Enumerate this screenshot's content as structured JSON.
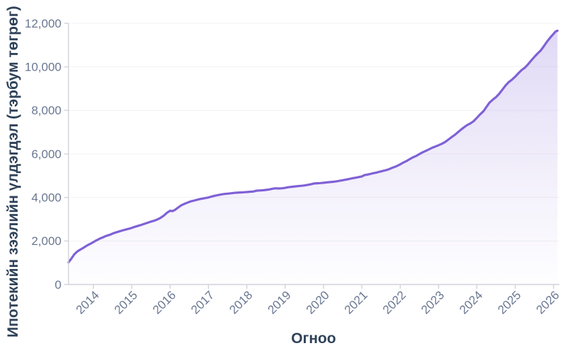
{
  "chart_data": {
    "type": "area",
    "title": "",
    "xlabel": "Огноо",
    "ylabel": "Ипотекийн зээлийн үлдэгдэл (тэрбум төгрөг)",
    "x_tick_labels": [
      "2014",
      "2015",
      "2016",
      "2017",
      "2018",
      "2019",
      "2020",
      "2021",
      "2022",
      "2023",
      "2024",
      "2025",
      "2026"
    ],
    "x_tick_values": [
      2014,
      2015,
      2016,
      2017,
      2018,
      2019,
      2020,
      2021,
      2022,
      2023,
      2024,
      2025,
      2026
    ],
    "y_tick_values": [
      0,
      2000,
      4000,
      6000,
      8000,
      10000,
      12000
    ],
    "y_tick_labels": [
      "0",
      "2,000",
      "4,000",
      "6,000",
      "8,000",
      "10,000",
      "12,000"
    ],
    "xlim": [
      2013.35,
      2026.15
    ],
    "ylim": [
      0,
      12000
    ],
    "grid": true,
    "legend": false,
    "line_color": "#7f61d6",
    "fill_color": "#7f61d6",
    "grid_color": "#f3f2f7",
    "axis_color": "#d2d2dc",
    "tick_label_color": "#6a7791",
    "axis_title_color": "#2f4259",
    "points": [
      [
        2013.35,
        1020
      ],
      [
        2013.42,
        1180
      ],
      [
        2013.5,
        1380
      ],
      [
        2013.58,
        1520
      ],
      [
        2013.67,
        1620
      ],
      [
        2013.75,
        1700
      ],
      [
        2013.83,
        1790
      ],
      [
        2013.92,
        1870
      ],
      [
        2014.0,
        1950
      ],
      [
        2014.08,
        2030
      ],
      [
        2014.17,
        2110
      ],
      [
        2014.25,
        2170
      ],
      [
        2014.33,
        2230
      ],
      [
        2014.42,
        2280
      ],
      [
        2014.5,
        2340
      ],
      [
        2014.58,
        2390
      ],
      [
        2014.67,
        2440
      ],
      [
        2014.75,
        2480
      ],
      [
        2014.83,
        2520
      ],
      [
        2014.92,
        2560
      ],
      [
        2015.0,
        2600
      ],
      [
        2015.08,
        2650
      ],
      [
        2015.17,
        2700
      ],
      [
        2015.25,
        2740
      ],
      [
        2015.33,
        2790
      ],
      [
        2015.42,
        2840
      ],
      [
        2015.5,
        2890
      ],
      [
        2015.58,
        2930
      ],
      [
        2015.67,
        2990
      ],
      [
        2015.75,
        3060
      ],
      [
        2015.83,
        3160
      ],
      [
        2015.92,
        3300
      ],
      [
        2016.0,
        3390
      ],
      [
        2016.06,
        3370
      ],
      [
        2016.13,
        3430
      ],
      [
        2016.21,
        3540
      ],
      [
        2016.29,
        3640
      ],
      [
        2016.38,
        3710
      ],
      [
        2016.46,
        3770
      ],
      [
        2016.54,
        3820
      ],
      [
        2016.63,
        3860
      ],
      [
        2016.71,
        3900
      ],
      [
        2016.79,
        3930
      ],
      [
        2016.88,
        3960
      ],
      [
        2017.0,
        4000
      ],
      [
        2017.08,
        4040
      ],
      [
        2017.17,
        4080
      ],
      [
        2017.25,
        4110
      ],
      [
        2017.33,
        4140
      ],
      [
        2017.42,
        4160
      ],
      [
        2017.5,
        4175
      ],
      [
        2017.58,
        4190
      ],
      [
        2017.67,
        4210
      ],
      [
        2017.75,
        4220
      ],
      [
        2017.83,
        4230
      ],
      [
        2017.92,
        4240
      ],
      [
        2018.0,
        4250
      ],
      [
        2018.08,
        4260
      ],
      [
        2018.17,
        4270
      ],
      [
        2018.25,
        4310
      ],
      [
        2018.33,
        4320
      ],
      [
        2018.42,
        4330
      ],
      [
        2018.5,
        4345
      ],
      [
        2018.58,
        4365
      ],
      [
        2018.67,
        4400
      ],
      [
        2018.75,
        4420
      ],
      [
        2018.83,
        4410
      ],
      [
        2018.92,
        4420
      ],
      [
        2019.0,
        4440
      ],
      [
        2019.08,
        4470
      ],
      [
        2019.17,
        4490
      ],
      [
        2019.25,
        4505
      ],
      [
        2019.33,
        4520
      ],
      [
        2019.42,
        4535
      ],
      [
        2019.5,
        4550
      ],
      [
        2019.58,
        4575
      ],
      [
        2019.67,
        4605
      ],
      [
        2019.75,
        4640
      ],
      [
        2019.83,
        4650
      ],
      [
        2019.92,
        4660
      ],
      [
        2020.0,
        4675
      ],
      [
        2020.08,
        4690
      ],
      [
        2020.17,
        4705
      ],
      [
        2020.25,
        4720
      ],
      [
        2020.33,
        4740
      ],
      [
        2020.42,
        4765
      ],
      [
        2020.5,
        4790
      ],
      [
        2020.58,
        4820
      ],
      [
        2020.67,
        4850
      ],
      [
        2020.75,
        4880
      ],
      [
        2020.83,
        4905
      ],
      [
        2020.92,
        4935
      ],
      [
        2021.0,
        4965
      ],
      [
        2021.06,
        5020
      ],
      [
        2021.13,
        5045
      ],
      [
        2021.21,
        5075
      ],
      [
        2021.29,
        5110
      ],
      [
        2021.38,
        5145
      ],
      [
        2021.46,
        5180
      ],
      [
        2021.54,
        5215
      ],
      [
        2021.63,
        5255
      ],
      [
        2021.71,
        5300
      ],
      [
        2021.79,
        5360
      ],
      [
        2021.88,
        5420
      ],
      [
        2022.0,
        5520
      ],
      [
        2022.08,
        5600
      ],
      [
        2022.17,
        5680
      ],
      [
        2022.25,
        5760
      ],
      [
        2022.33,
        5840
      ],
      [
        2022.42,
        5910
      ],
      [
        2022.5,
        5990
      ],
      [
        2022.58,
        6070
      ],
      [
        2022.67,
        6140
      ],
      [
        2022.75,
        6210
      ],
      [
        2022.83,
        6280
      ],
      [
        2022.92,
        6340
      ],
      [
        2023.0,
        6400
      ],
      [
        2023.08,
        6460
      ],
      [
        2023.17,
        6545
      ],
      [
        2023.25,
        6650
      ],
      [
        2023.33,
        6760
      ],
      [
        2023.42,
        6870
      ],
      [
        2023.5,
        6990
      ],
      [
        2023.58,
        7110
      ],
      [
        2023.67,
        7230
      ],
      [
        2023.75,
        7330
      ],
      [
        2023.83,
        7400
      ],
      [
        2023.92,
        7510
      ],
      [
        2024.0,
        7660
      ],
      [
        2024.08,
        7810
      ],
      [
        2024.17,
        7960
      ],
      [
        2024.25,
        8160
      ],
      [
        2024.33,
        8360
      ],
      [
        2024.42,
        8500
      ],
      [
        2024.5,
        8610
      ],
      [
        2024.58,
        8760
      ],
      [
        2024.67,
        8960
      ],
      [
        2024.75,
        9150
      ],
      [
        2024.83,
        9300
      ],
      [
        2024.92,
        9420
      ],
      [
        2025.0,
        9550
      ],
      [
        2025.08,
        9700
      ],
      [
        2025.17,
        9860
      ],
      [
        2025.25,
        9960
      ],
      [
        2025.33,
        10110
      ],
      [
        2025.42,
        10300
      ],
      [
        2025.5,
        10460
      ],
      [
        2025.58,
        10610
      ],
      [
        2025.67,
        10760
      ],
      [
        2025.75,
        10960
      ],
      [
        2025.83,
        11160
      ],
      [
        2025.92,
        11360
      ],
      [
        2026.0,
        11520
      ],
      [
        2026.05,
        11620
      ],
      [
        2026.1,
        11660
      ]
    ]
  }
}
